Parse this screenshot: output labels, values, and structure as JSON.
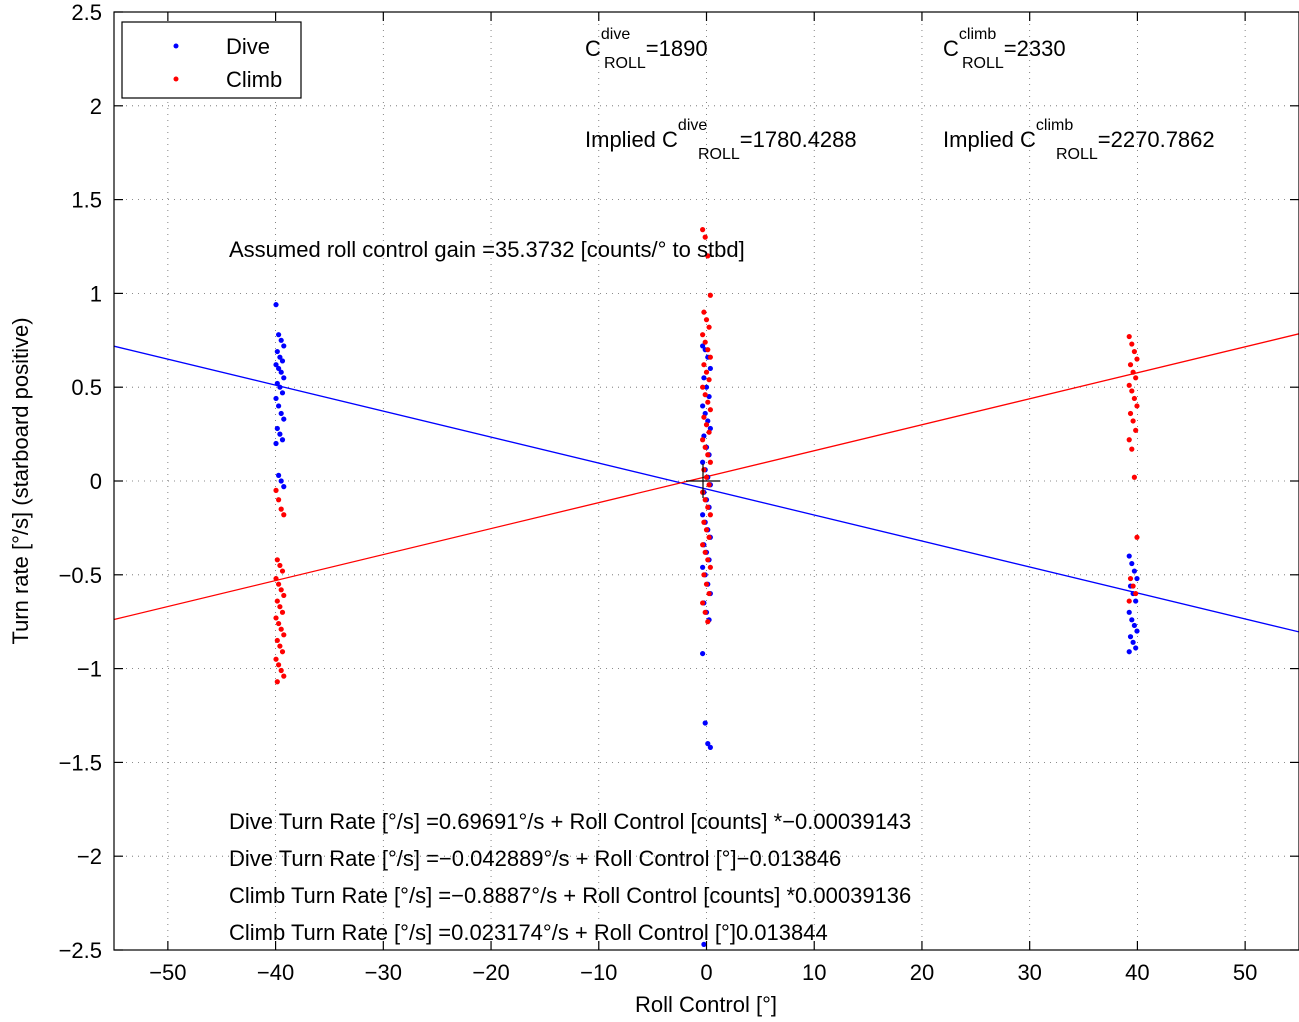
{
  "chart_data": {
    "type": "scatter",
    "title": "",
    "xlabel": "Roll Control [°]",
    "ylabel": "Turn rate [°/s] (starboard positive)",
    "xlim": [
      -55,
      55
    ],
    "ylim": [
      -2.5,
      2.5
    ],
    "xticks": [
      -50,
      -40,
      -30,
      -20,
      -10,
      0,
      10,
      20,
      30,
      40,
      50
    ],
    "xtick_labels": [
      "−50",
      "−40",
      "−30",
      "−20",
      "−10",
      "0",
      "10",
      "20",
      "30",
      "40",
      "50"
    ],
    "yticks": [
      -2.5,
      -2,
      -1.5,
      -1,
      -0.5,
      0,
      0.5,
      1,
      1.5,
      2,
      2.5
    ],
    "ytick_labels": [
      "−2.5",
      "−2",
      "−1.5",
      "−1",
      "−0.5",
      "0",
      "0.5",
      "1",
      "1.5",
      "2",
      "2.5"
    ],
    "grid": true,
    "legend_position": "top-left",
    "series": [
      {
        "name": "Dive",
        "color": "#0000ff",
        "groups": [
          {
            "x": -39.6,
            "y": [
              0.94,
              0.78,
              0.75,
              0.72,
              0.69,
              0.66,
              0.64,
              0.62,
              0.6,
              0.58,
              0.55,
              0.52,
              0.5,
              0.47,
              0.44,
              0.4,
              0.36,
              0.33,
              0.28,
              0.25,
              0.22,
              0.2,
              0.03,
              0.0,
              -0.03
            ]
          },
          {
            "x": 0.0,
            "y": [
              0.72,
              0.7,
              0.66,
              0.6,
              0.55,
              0.5,
              0.45,
              0.4,
              0.36,
              0.32,
              0.28,
              0.24,
              0.18,
              0.14,
              0.1,
              0.06,
              0.02,
              -0.02,
              -0.06,
              -0.1,
              -0.14,
              -0.18,
              -0.22,
              -0.26,
              -0.3,
              -0.34,
              -0.38,
              -0.42,
              -0.46,
              -0.5,
              -0.55,
              -0.6,
              -0.65,
              -0.7,
              -0.74,
              -0.92,
              -1.29,
              -1.4,
              -1.42,
              -2.47
            ]
          },
          {
            "x": 39.6,
            "y": [
              -0.4,
              -0.44,
              -0.48,
              -0.52,
              -0.56,
              -0.6,
              -0.64,
              -0.7,
              -0.74,
              -0.77,
              -0.8,
              -0.83,
              -0.86,
              -0.89,
              -0.91
            ]
          }
        ],
        "fit": {
          "intercept": -0.042889,
          "slope": -0.013846
        }
      },
      {
        "name": "Climb",
        "color": "#ff0000",
        "groups": [
          {
            "x": -39.6,
            "y": [
              -0.05,
              -0.1,
              -0.15,
              -0.18,
              -0.42,
              -0.45,
              -0.48,
              -0.52,
              -0.55,
              -0.58,
              -0.61,
              -0.64,
              -0.67,
              -0.7,
              -0.73,
              -0.76,
              -0.79,
              -0.82,
              -0.85,
              -0.88,
              -0.91,
              -0.95,
              -0.98,
              -1.01,
              -1.04,
              -1.07
            ]
          },
          {
            "x": 0.0,
            "y": [
              1.34,
              1.3,
              1.2,
              0.99,
              0.9,
              0.86,
              0.82,
              0.78,
              0.74,
              0.7,
              0.66,
              0.62,
              0.58,
              0.54,
              0.5,
              0.46,
              0.42,
              0.38,
              0.34,
              0.3,
              0.26,
              0.22,
              0.18,
              0.14,
              0.1,
              0.06,
              0.02,
              -0.02,
              -0.06,
              -0.1,
              -0.14,
              -0.18,
              -0.22,
              -0.26,
              -0.3,
              -0.34,
              -0.38,
              -0.42,
              -0.46,
              -0.5,
              -0.55,
              -0.6,
              -0.65,
              -0.7,
              -0.75
            ]
          },
          {
            "x": 39.6,
            "y": [
              0.77,
              0.73,
              0.69,
              0.65,
              0.62,
              0.58,
              0.55,
              0.51,
              0.48,
              0.44,
              0.4,
              0.36,
              0.32,
              0.27,
              0.22,
              0.17,
              0.02,
              -0.3,
              -0.52,
              -0.56,
              -0.6,
              -0.64
            ]
          }
        ],
        "fit": {
          "intercept": 0.023174,
          "slope": 0.013844
        }
      }
    ],
    "marker": {
      "x": 0,
      "y": 0,
      "symbol": "+"
    },
    "annotations": {
      "c_dive": {
        "main": "C",
        "sup": "dive",
        "sub": "ROLL",
        "rest": "=1890"
      },
      "c_climb": {
        "main": "C",
        "sup": "climb",
        "sub": "ROLL",
        "rest": "=2330"
      },
      "implied_dive": {
        "main": "Implied C",
        "sup": "dive",
        "sub": "ROLL",
        "rest": "=1780.4288"
      },
      "implied_climb": {
        "main": "Implied C",
        "sup": "climb",
        "sub": "ROLL",
        "rest": "=2270.7862"
      },
      "gain": "Assumed roll control gain =35.3732 [counts/° to stbd]",
      "eq1": "Dive Turn Rate [°/s] =0.69691°/s + Roll Control [counts] *−0.00039143",
      "eq2": "Dive Turn Rate [°/s] =−0.042889°/s + Roll Control [°]−0.013846",
      "eq3": "Climb Turn Rate [°/s] =−0.8887°/s + Roll Control [counts] *0.00039136",
      "eq4": "Climb Turn Rate [°/s] =0.023174°/s + Roll Control [°]0.013844"
    }
  }
}
